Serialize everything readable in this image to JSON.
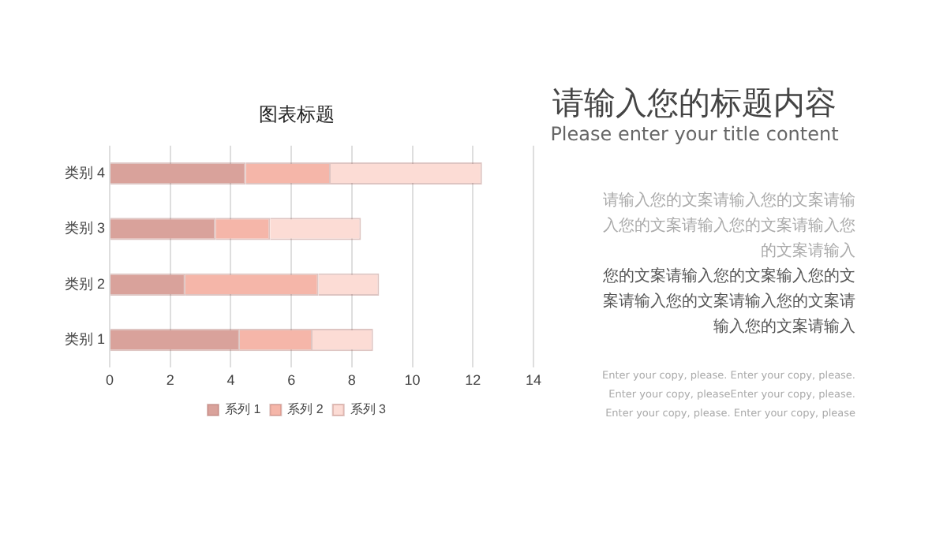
{
  "chart_data": {
    "type": "bar",
    "orientation": "horizontal",
    "stacked": true,
    "title": "图表标题",
    "categories": [
      "类别 4",
      "类别 3",
      "类别 2",
      "类别 1"
    ],
    "series": [
      {
        "name": "系列 1",
        "color": "#d9a29b",
        "values": [
          4.5,
          3.5,
          2.5,
          4.3
        ]
      },
      {
        "name": "系列 2",
        "color": "#f5b6a9",
        "values": [
          2.8,
          1.8,
          4.4,
          2.4
        ]
      },
      {
        "name": "系列 3",
        "color": "#fcdcd5",
        "values": [
          5,
          3,
          2,
          2
        ]
      }
    ],
    "xlim": [
      0,
      14
    ],
    "xticks": [
      0,
      2,
      4,
      6,
      8,
      10,
      12,
      14
    ],
    "grid": "x",
    "legend": "bottom",
    "annotations": [
      "请输入您的标题内容",
      "Please enter your title content",
      "请输入您的文案请输入您的文案请输入您的文案请输入您的文案请输入您的文案请输入",
      "您的文案请输入您的文案输入您的文案请输入您的文案请输入您的文案请输入您的文案请输入",
      "Enter your copy, please. Enter your copy, please. Enter your copy, pleaseEnter your copy, please. Enter your copy, please. Enter your copy, please"
    ]
  }
}
